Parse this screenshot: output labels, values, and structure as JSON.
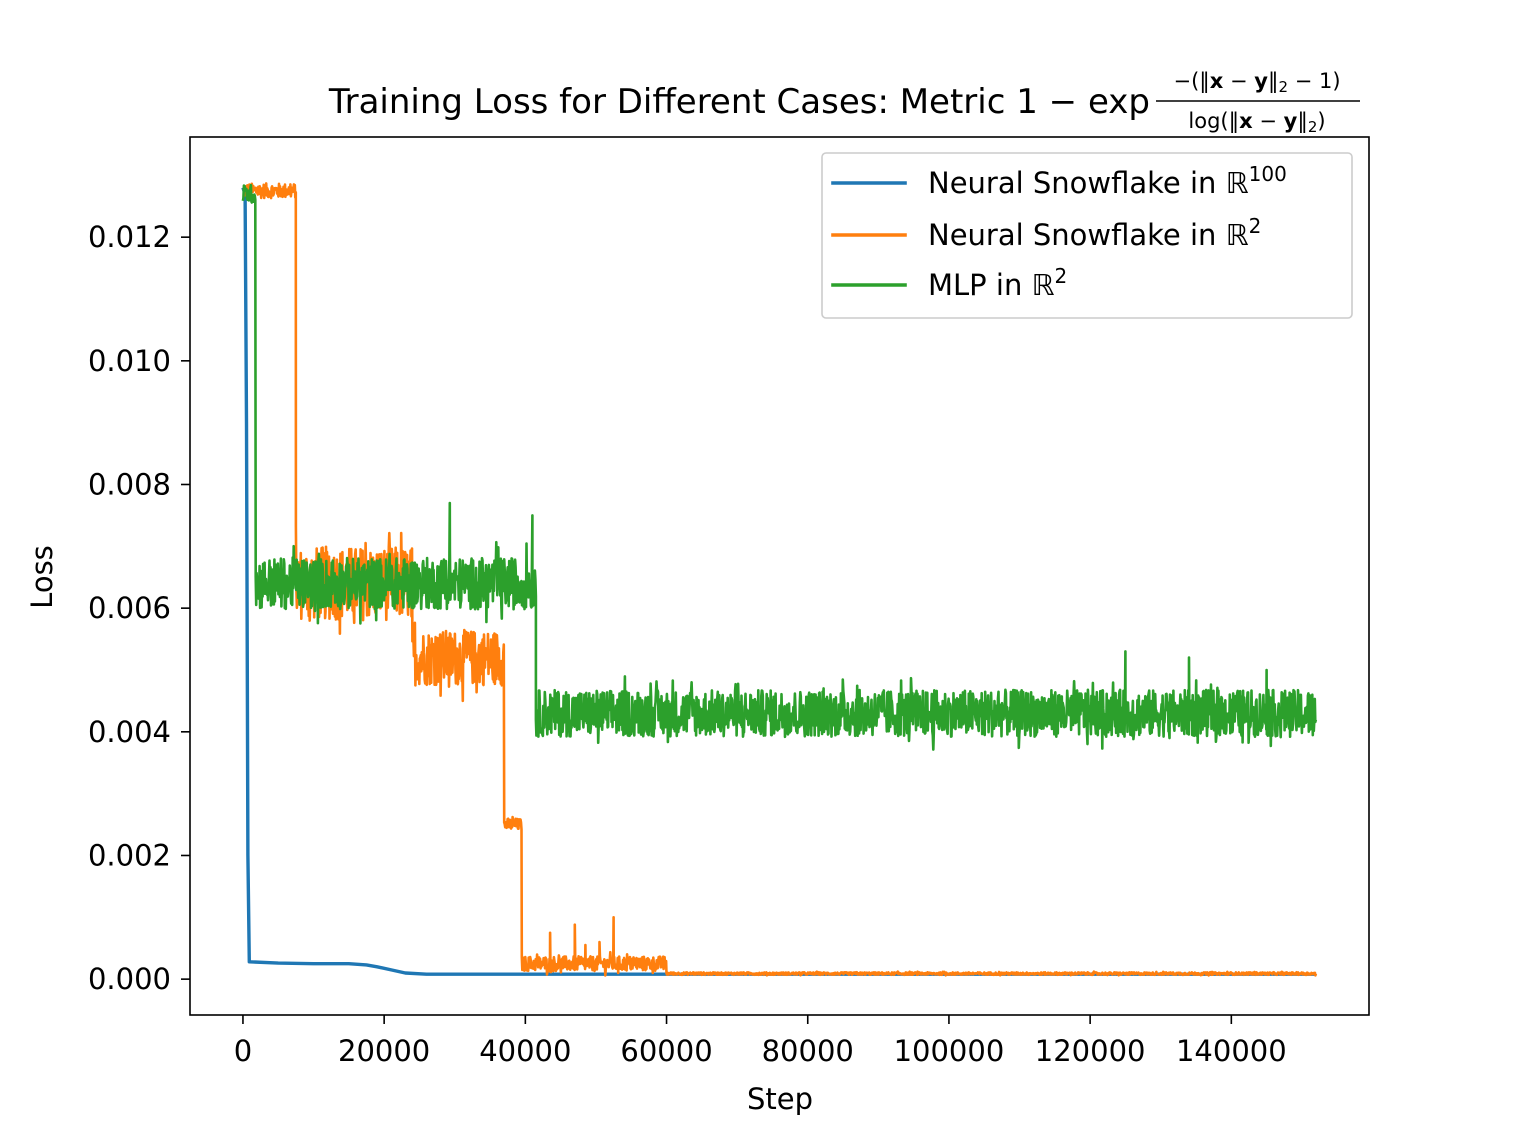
{
  "chart_data": {
    "type": "line",
    "title": {
      "prefix": "Training Loss for Different Cases: Metric 1 − exp",
      "numerator": [
        "−(‖",
        "x",
        " − ",
        "y",
        "‖",
        "2",
        " − 1)"
      ],
      "denominator": [
        "log(‖",
        "x",
        " − ",
        "y",
        "‖",
        "2",
        ")"
      ]
    },
    "xlabel": "Step",
    "ylabel": "Loss",
    "xlim": [
      -7500,
      159500
    ],
    "ylim": [
      -0.00058,
      0.01362
    ],
    "xticks": [
      0,
      20000,
      40000,
      60000,
      80000,
      100000,
      120000,
      140000
    ],
    "xtick_labels": [
      "0",
      "20000",
      "40000",
      "60000",
      "80000",
      "100000",
      "120000",
      "140000"
    ],
    "yticks": [
      0.0,
      0.002,
      0.004,
      0.006,
      0.008,
      0.01,
      0.012
    ],
    "ytick_labels": [
      "0.000",
      "0.002",
      "0.004",
      "0.006",
      "0.008",
      "0.010",
      "0.012"
    ],
    "legend_position": "top-right",
    "series": [
      {
        "name": "Neural Snowflake in ℝ",
        "sup": "100",
        "color": "#1f77b4",
        "points": [
          [
            0,
            0.0128
          ],
          [
            300,
            0.0127
          ],
          [
            500,
            0.009
          ],
          [
            700,
            0.002
          ],
          [
            900,
            0.00028
          ],
          [
            5000,
            0.00026
          ],
          [
            10000,
            0.00025
          ],
          [
            15000,
            0.00025
          ],
          [
            17500,
            0.00023
          ],
          [
            19000,
            0.0002
          ],
          [
            21000,
            0.00015
          ],
          [
            23000,
            0.0001
          ],
          [
            26000,
            8e-05
          ],
          [
            35000,
            8e-05
          ],
          [
            45000,
            8e-05
          ],
          [
            60000,
            8e-05
          ],
          [
            100000,
            8e-05
          ],
          [
            152000,
            8e-05
          ]
        ]
      },
      {
        "name": "Neural Snowflake in ℝ",
        "sup": "2",
        "color": "#ff7f0e",
        "segments": [
          {
            "x0": 0,
            "x1": 7500,
            "mean": 0.01275,
            "amp": 0.00012
          },
          {
            "x0": 7500,
            "x1": 24000,
            "mean": 0.0064,
            "amp": 0.0006
          },
          {
            "x0": 24000,
            "x1": 37000,
            "mean": 0.0052,
            "amp": 0.00045
          },
          {
            "x0": 37000,
            "x1": 39500,
            "mean": 0.0025,
            "amp": 0.0001
          },
          {
            "x0": 39500,
            "x1": 60000,
            "mean": 0.00025,
            "amp": 0.00012
          },
          {
            "x0": 60000,
            "x1": 152000,
            "mean": 9e-05,
            "amp": 2e-05
          }
        ],
        "spikes": [
          [
            29500,
            0.0055
          ],
          [
            43500,
            0.00075
          ],
          [
            47000,
            0.00088
          ],
          [
            48500,
            0.00055
          ],
          [
            52500,
            0.001
          ],
          [
            50500,
            0.0006
          ]
        ]
      },
      {
        "name": "MLP in ℝ",
        "sup": "2",
        "color": "#2ca02c",
        "segments": [
          {
            "x0": 0,
            "x1": 1800,
            "mean": 0.0127,
            "amp": 0.00015
          },
          {
            "x0": 1800,
            "x1": 41500,
            "mean": 0.0064,
            "amp": 0.00042
          },
          {
            "x0": 41500,
            "x1": 152000,
            "mean": 0.0043,
            "amp": 0.00038
          }
        ],
        "spikes": [
          [
            29300,
            0.0077
          ],
          [
            41000,
            0.0075
          ],
          [
            125000,
            0.0053
          ],
          [
            134000,
            0.0052
          ],
          [
            145000,
            0.005
          ]
        ]
      }
    ]
  }
}
